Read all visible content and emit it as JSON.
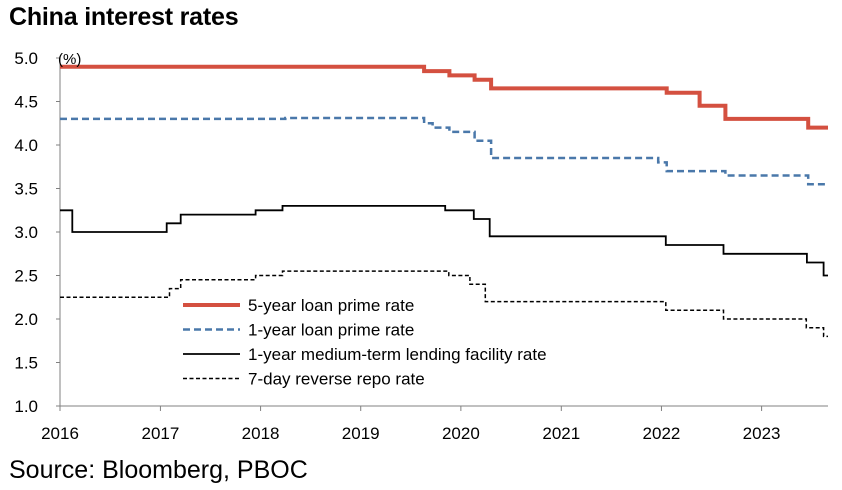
{
  "header": {
    "title": "China interest rates"
  },
  "footer": {
    "source": "Source: Bloomberg, PBOC"
  },
  "colors": {
    "lpr5": "#d45040",
    "lpr1": "#4a78aa",
    "mlf": "#000000",
    "repo": "#000000",
    "axis": "#808080"
  },
  "chart_data": {
    "type": "line",
    "title": "China interest rates",
    "ylabel": "(%)",
    "xlabel": "",
    "ylim": [
      1.0,
      5.0
    ],
    "xlim": [
      "2016-01-01",
      "2023-08-31"
    ],
    "yticks": [
      "1.0",
      "1.5",
      "2.0",
      "2.5",
      "3.0",
      "3.5",
      "4.0",
      "4.5",
      "5.0"
    ],
    "xticks": [
      "2016",
      "2017",
      "2018",
      "2019",
      "2020",
      "2021",
      "2022",
      "2023"
    ],
    "grid": false,
    "legend_position": "lower-center",
    "series": [
      {
        "name": "5-year loan prime rate",
        "key": "lpr5",
        "style": "solid-thick",
        "points": [
          [
            "2016-01-01",
            4.9
          ],
          [
            "2019-08-20",
            4.85
          ],
          [
            "2019-11-20",
            4.8
          ],
          [
            "2020-02-20",
            4.75
          ],
          [
            "2020-04-20",
            4.65
          ],
          [
            "2022-01-20",
            4.6
          ],
          [
            "2022-05-20",
            4.45
          ],
          [
            "2022-08-22",
            4.3
          ],
          [
            "2023-06-20",
            4.2
          ],
          [
            "2023-08-31",
            4.2
          ]
        ]
      },
      {
        "name": "1-year loan prime rate",
        "key": "lpr1",
        "style": "dashed",
        "points": [
          [
            "2016-01-01",
            4.3
          ],
          [
            "2018-04-01",
            4.31
          ],
          [
            "2019-03-01",
            4.31
          ],
          [
            "2019-08-20",
            4.25
          ],
          [
            "2019-09-20",
            4.2
          ],
          [
            "2019-11-20",
            4.15
          ],
          [
            "2020-02-20",
            4.05
          ],
          [
            "2020-04-20",
            3.85
          ],
          [
            "2021-12-20",
            3.8
          ],
          [
            "2022-01-20",
            3.7
          ],
          [
            "2022-08-22",
            3.65
          ],
          [
            "2023-06-20",
            3.55
          ],
          [
            "2023-08-31",
            3.55
          ]
        ]
      },
      {
        "name": "1-year medium-term lending facility rate",
        "key": "mlf",
        "style": "solid",
        "points": [
          [
            "2016-01-01",
            3.25
          ],
          [
            "2016-02-15",
            3.0
          ],
          [
            "2017-01-24",
            3.1
          ],
          [
            "2017-03-16",
            3.2
          ],
          [
            "2017-12-14",
            3.25
          ],
          [
            "2018-03-22",
            3.3
          ],
          [
            "2019-11-05",
            3.25
          ],
          [
            "2020-02-17",
            3.15
          ],
          [
            "2020-04-15",
            2.95
          ],
          [
            "2022-01-17",
            2.85
          ],
          [
            "2022-08-15",
            2.75
          ],
          [
            "2023-06-15",
            2.65
          ],
          [
            "2023-08-15",
            2.5
          ],
          [
            "2023-08-31",
            2.5
          ]
        ]
      },
      {
        "name": "7-day reverse repo rate",
        "key": "repo",
        "style": "dotted",
        "points": [
          [
            "2016-01-01",
            2.25
          ],
          [
            "2017-02-03",
            2.35
          ],
          [
            "2017-03-16",
            2.45
          ],
          [
            "2017-12-14",
            2.5
          ],
          [
            "2018-03-22",
            2.55
          ],
          [
            "2019-11-18",
            2.5
          ],
          [
            "2020-02-03",
            2.4
          ],
          [
            "2020-03-30",
            2.2
          ],
          [
            "2022-01-17",
            2.1
          ],
          [
            "2022-08-15",
            2.0
          ],
          [
            "2023-06-13",
            1.9
          ],
          [
            "2023-08-15",
            1.8
          ],
          [
            "2023-08-31",
            1.8
          ]
        ]
      }
    ]
  }
}
